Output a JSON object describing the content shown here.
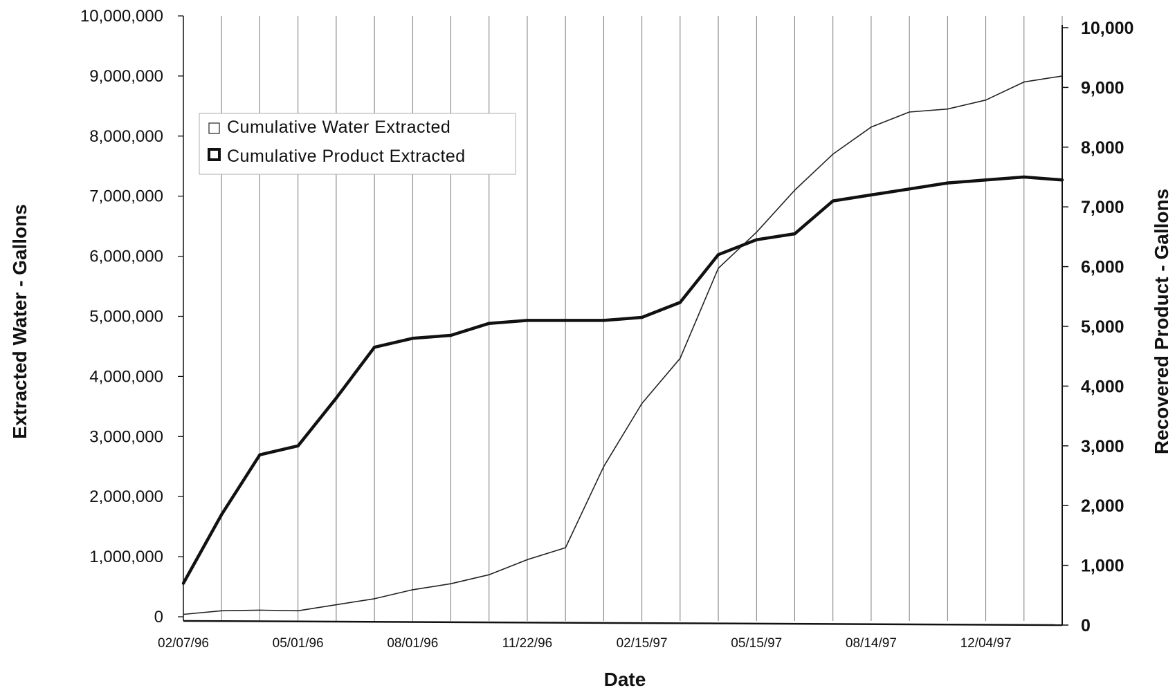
{
  "chart_data": {
    "type": "line",
    "title": "",
    "xlabel": "Date",
    "ylabel_left": "Extracted Water - Gallons",
    "ylabel_right": "Recovered Product - Gallons",
    "ylim_left": [
      0,
      10000000
    ],
    "ylim_right": [
      0,
      10000
    ],
    "grid": "vertical",
    "legend_position": "top-left",
    "x_tick_labels": [
      "02/07/96",
      "05/01/96",
      "08/01/96",
      "11/22/96",
      "02/15/97",
      "05/15/97",
      "08/14/97",
      "12/04/97"
    ],
    "left_tick_labels": [
      "0",
      "1,000,000",
      "2,000,000",
      "3,000,000",
      "4,000,000",
      "5,000,000",
      "6,000,000",
      "7,000,000",
      "8,000,000",
      "9,000,000",
      "10,000,000"
    ],
    "right_tick_labels": [
      "0",
      "1,000",
      "2,000",
      "3,000",
      "4,000",
      "5,000",
      "6,000",
      "7,000",
      "8,000",
      "9,000",
      "10,000"
    ],
    "series": [
      {
        "name": "Cumulative Water Extracted",
        "axis": "left",
        "color": "#222222",
        "style": "thin",
        "values": [
          40000,
          100000,
          110000,
          100000,
          200000,
          300000,
          450000,
          550000,
          700000,
          950000,
          1150000,
          2500000,
          3550000,
          4300000,
          5800000,
          6400000,
          7100000,
          7700000,
          8150000,
          8400000,
          8450000,
          8600000,
          8900000,
          9000000
        ]
      },
      {
        "name": "Cumulative Product Extracted",
        "axis": "right",
        "color": "#111111",
        "style": "thick",
        "values": [
          700,
          1850,
          2850,
          3000,
          3800,
          4650,
          4800,
          4850,
          5050,
          5100,
          5100,
          5100,
          5150,
          5400,
          6200,
          6450,
          6550,
          7100,
          7200,
          7300,
          7400,
          7450,
          7500,
          7450
        ]
      }
    ]
  }
}
